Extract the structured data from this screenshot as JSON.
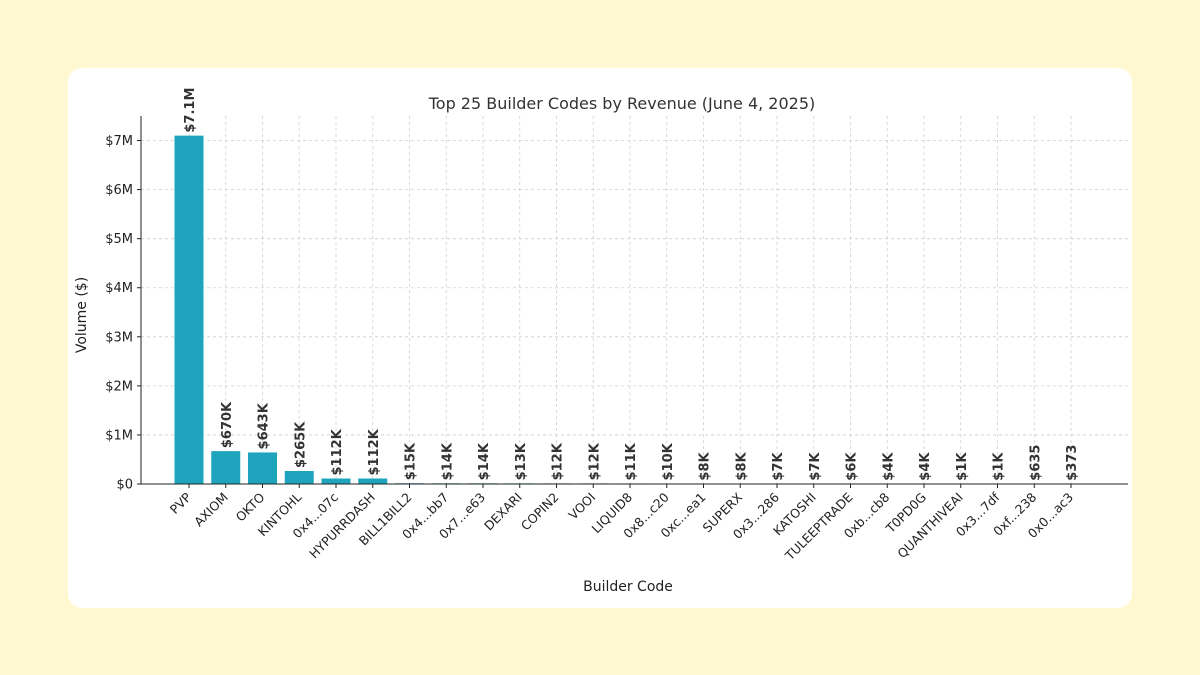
{
  "chart_data": {
    "type": "bar",
    "title": "Top 25 Builder Codes by Revenue (June 4, 2025)",
    "xlabel": "Builder Code",
    "ylabel": "Volume ($)",
    "ylim": [
      0,
      7500000
    ],
    "yticks": [
      0,
      1000000,
      2000000,
      3000000,
      4000000,
      5000000,
      6000000,
      7000000
    ],
    "ytick_labels": [
      "$0",
      "$1M",
      "$2M",
      "$3M",
      "$4M",
      "$5M",
      "$6M",
      "$7M"
    ],
    "grid": true,
    "bar_color": "#1ea5bd",
    "categories": [
      "PVP",
      "AXIOM",
      "OKTO",
      "KINTOHL",
      "0x4...07c",
      "HYPURRDASH",
      "BILL1BILL2",
      "0x4...bb7",
      "0x7...e63",
      "DEXARI",
      "COPIN2",
      "VOOI",
      "LIQUID8",
      "0x8...c20",
      "0xc...ea1",
      "SUPERX",
      "0x3...286",
      "KATOSHI",
      "TULEEPTRADE",
      "0xb...cb8",
      "T0PD0G",
      "QUANTHIVEAI",
      "0x3...7df",
      "0xf...238",
      "0x0...ac3"
    ],
    "values": [
      7100000,
      670000,
      643000,
      265000,
      112000,
      112000,
      15000,
      14000,
      14000,
      13000,
      12000,
      12000,
      11000,
      10000,
      8000,
      8000,
      7000,
      7000,
      6000,
      4000,
      4000,
      1000,
      1000,
      635,
      373
    ],
    "data_labels": [
      "$7.1M",
      "$670K",
      "$643K",
      "$265K",
      "$112K",
      "$112K",
      "$15K",
      "$14K",
      "$14K",
      "$13K",
      "$12K",
      "$12K",
      "$11K",
      "$10K",
      "$8K",
      "$8K",
      "$7K",
      "$7K",
      "$6K",
      "$4K",
      "$4K",
      "$1K",
      "$1K",
      "$635",
      "$373"
    ]
  }
}
